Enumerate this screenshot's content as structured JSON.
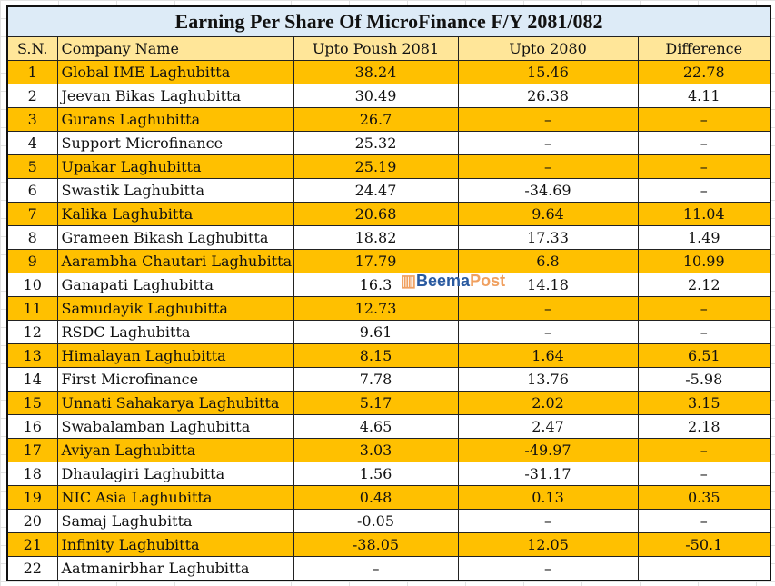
{
  "title": "Earning Per Share Of MicroFinance F/Y 2081/082",
  "headers": [
    "S.N.",
    "Company Name",
    "Upto Poush 2081",
    "Upto 2080",
    "Difference"
  ],
  "rows": [
    [
      "1",
      "Global IME Laghubitta",
      "38.24",
      "15.46",
      "22.78"
    ],
    [
      "2",
      "Jeevan Bikas Laghubitta",
      "30.49",
      "26.38",
      "4.11"
    ],
    [
      "3",
      "Gurans Laghubitta",
      "26.7",
      "–",
      "–"
    ],
    [
      "4",
      "Support Microfinance",
      "25.32",
      "–",
      "–"
    ],
    [
      "5",
      "Upakar Laghubitta",
      "25.19",
      "–",
      "–"
    ],
    [
      "6",
      "Swastik Laghubitta",
      "24.47",
      "-34.69",
      "–"
    ],
    [
      "7",
      "Kalika Laghubitta",
      "20.68",
      "9.64",
      "11.04"
    ],
    [
      "8",
      "Grameen Bikash Laghubitta",
      "18.82",
      "17.33",
      "1.49"
    ],
    [
      "9",
      "Aarambha Chautari Laghubitta",
      "17.79",
      "6.8",
      "10.99"
    ],
    [
      "10",
      "Ganapati Laghubitta",
      "16.3",
      "14.18",
      "2.12"
    ],
    [
      "11",
      "Samudayik Laghubitta",
      "12.73",
      "–",
      "–"
    ],
    [
      "12",
      "RSDC Laghubitta",
      "9.61",
      "–",
      "–"
    ],
    [
      "13",
      "Himalayan Laghubitta",
      "8.15",
      "1.64",
      "6.51"
    ],
    [
      "14",
      "First Microfinance",
      "7.78",
      "13.76",
      "-5.98"
    ],
    [
      "15",
      "Unnati Sahakarya Laghubitta",
      "5.17",
      "2.02",
      "3.15"
    ],
    [
      "16",
      "Swabalamban Laghubitta",
      "4.65",
      "2.47",
      "2.18"
    ],
    [
      "17",
      "Aviyan Laghubitta",
      "3.03",
      "-49.97",
      "–"
    ],
    [
      "18",
      "Dhaulagiri Laghubitta",
      "1.56",
      "-31.17",
      "–"
    ],
    [
      "19",
      "NIC Asia Laghubitta",
      "0.48",
      "0.13",
      "0.35"
    ],
    [
      "20",
      "Samaj Laghubitta",
      "-0.05",
      "–",
      "–"
    ],
    [
      "21",
      "Infinity Laghubitta",
      "-38.05",
      "12.05",
      "-50.1"
    ],
    [
      "22",
      "Aatmanirbhar Laghubitta",
      "–",
      "–",
      ""
    ]
  ],
  "watermark": {
    "part1": "Beema",
    "part2": "Post"
  }
}
